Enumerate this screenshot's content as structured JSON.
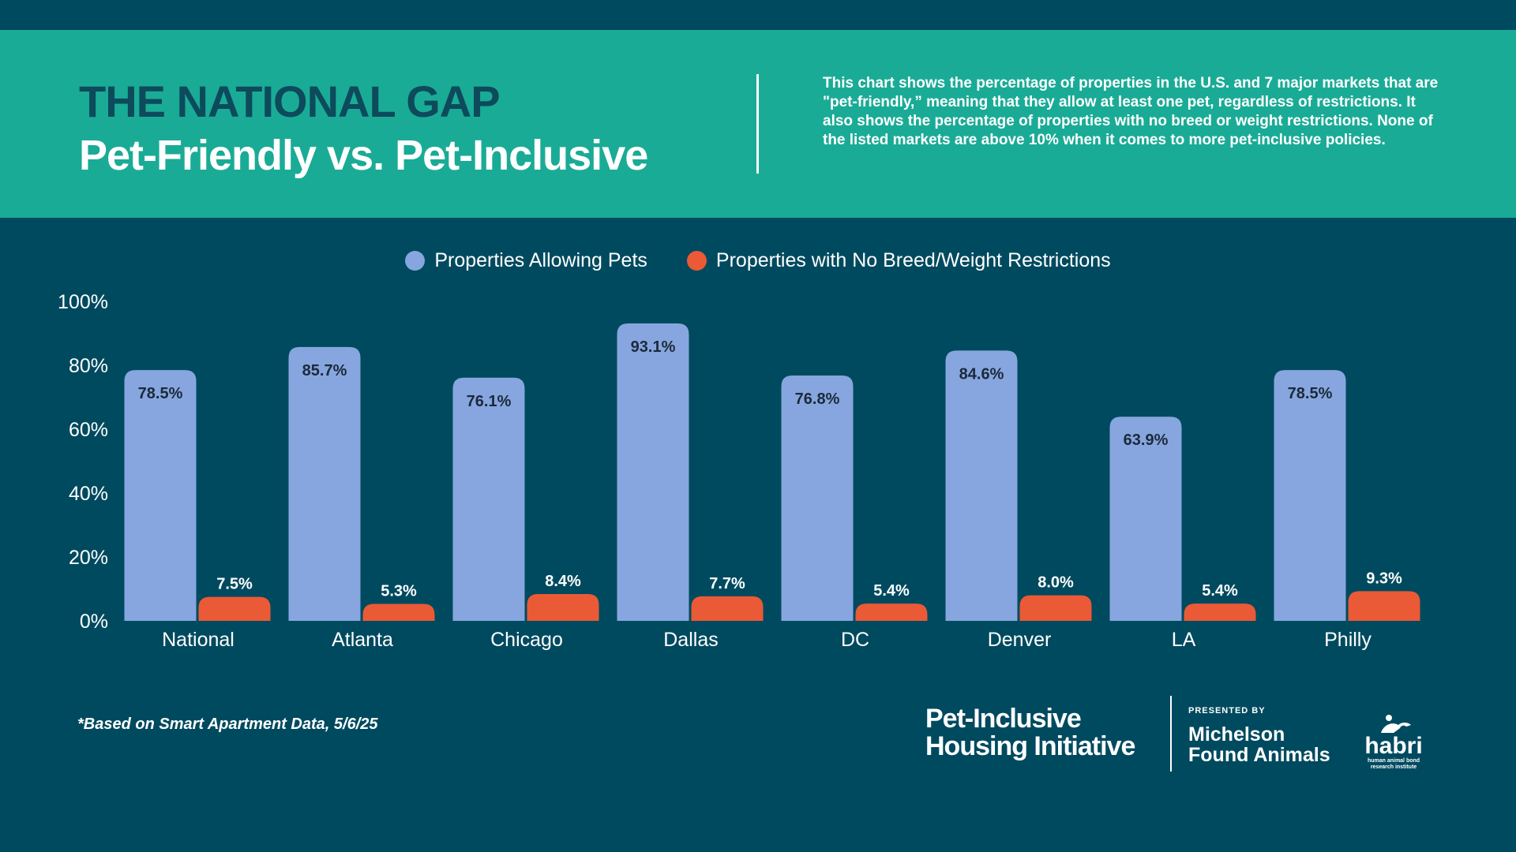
{
  "header": {
    "title": "THE NATIONAL GAP",
    "subtitle": "Pet-Friendly vs. Pet-Inclusive",
    "description": "This chart shows the percentage of properties in the U.S. and 7 major markets that are \"pet-friendly,” meaning that they allow at least one pet, regardless of restrictions. It also shows the percentage of properties with no breed or weight restrictions. None of the listed markets are above 10% when it comes to more pet-inclusive policies."
  },
  "legend": {
    "series_1": "Properties Allowing Pets",
    "series_2": "Properties with No Breed/Weight Restrictions"
  },
  "colors": {
    "background": "#004a5f",
    "banner": "#1aab96",
    "series_1": "#87a6df",
    "series_2": "#ea5a36"
  },
  "chart_data": {
    "type": "bar",
    "categories": [
      "National",
      "Atlanta",
      "Chicago",
      "Dallas",
      "DC",
      "Denver",
      "LA",
      "Philly"
    ],
    "series": [
      {
        "name": "Properties Allowing Pets",
        "values": [
          78.5,
          85.7,
          76.1,
          93.1,
          76.8,
          84.6,
          63.9,
          78.5
        ],
        "labels": [
          "78.5%",
          "85.7%",
          "76.1%",
          "93.1%",
          "76.8%",
          "84.6%",
          "63.9%",
          "78.5%"
        ]
      },
      {
        "name": "Properties with No Breed/Weight Restrictions",
        "values": [
          7.5,
          5.3,
          8.4,
          7.7,
          5.4,
          8.0,
          5.4,
          9.3
        ],
        "labels": [
          "7.5%",
          "5.3%",
          "8.4%",
          "7.7%",
          "5.4%",
          "8.0%",
          "5.4%",
          "9.3%"
        ]
      }
    ],
    "ylim": [
      0,
      100
    ],
    "yticks": [
      "0%",
      "20%",
      "40%",
      "60%",
      "80%",
      "100%"
    ],
    "legend_position": "top-center",
    "grid": false
  },
  "footer": {
    "footnote": "*Based on Smart Apartment Data, 5/6/25",
    "brand_line_1": "Pet-Inclusive",
    "brand_line_2": "Housing Initiative",
    "presented_by": "PRESENTED BY",
    "partner_line_1": "Michelson",
    "partner_line_2": "Found Animals",
    "habri_word": "habri",
    "habri_tagline_1": "human animal bond",
    "habri_tagline_2": "research institute"
  }
}
